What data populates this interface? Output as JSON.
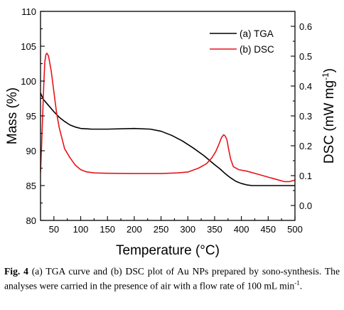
{
  "chart_data": {
    "type": "line",
    "xlabel": "Temperature (°C)",
    "ylabel_left": "Mass (%)",
    "ylabel_right": "DSC (mW mg⁻¹)",
    "xlim": [
      25,
      500
    ],
    "ylim_left": [
      80,
      110
    ],
    "ylim_right": [
      -0.05,
      0.65
    ],
    "x_ticks": [
      "50",
      "100",
      "150",
      "200",
      "250",
      "300",
      "350",
      "400",
      "450",
      "500"
    ],
    "y_left_ticks": [
      "80",
      "85",
      "90",
      "95",
      "100",
      "105",
      "110"
    ],
    "y_right_ticks": [
      "0.0",
      "0.1",
      "0.2",
      "0.3",
      "0.4",
      "0.5",
      "0.6"
    ],
    "grid": false,
    "legend_position": "top-right",
    "series": [
      {
        "name": "(a) TGA",
        "axis": "left",
        "color": "#000000",
        "points": [
          [
            25,
            98.3
          ],
          [
            30,
            97.4
          ],
          [
            40,
            96.5
          ],
          [
            50,
            95.6
          ],
          [
            60,
            94.8
          ],
          [
            70,
            94.2
          ],
          [
            80,
            93.7
          ],
          [
            90,
            93.4
          ],
          [
            100,
            93.2
          ],
          [
            120,
            93.1
          ],
          [
            150,
            93.1
          ],
          [
            200,
            93.2
          ],
          [
            230,
            93.1
          ],
          [
            250,
            92.8
          ],
          [
            270,
            92.2
          ],
          [
            290,
            91.4
          ],
          [
            310,
            90.4
          ],
          [
            330,
            89.3
          ],
          [
            350,
            88.0
          ],
          [
            360,
            87.4
          ],
          [
            370,
            86.7
          ],
          [
            380,
            86.1
          ],
          [
            390,
            85.6
          ],
          [
            400,
            85.3
          ],
          [
            410,
            85.1
          ],
          [
            420,
            85.0
          ],
          [
            450,
            85.0
          ],
          [
            500,
            85.0
          ]
        ]
      },
      {
        "name": "(b) DSC",
        "axis": "right",
        "color": "#e8141b",
        "points": [
          [
            25,
            0.11
          ],
          [
            27,
            0.2
          ],
          [
            29,
            0.3
          ],
          [
            31,
            0.4
          ],
          [
            33,
            0.48
          ],
          [
            35,
            0.505
          ],
          [
            37,
            0.51
          ],
          [
            40,
            0.5
          ],
          [
            45,
            0.45
          ],
          [
            50,
            0.38
          ],
          [
            55,
            0.31
          ],
          [
            60,
            0.26
          ],
          [
            70,
            0.19
          ],
          [
            80,
            0.16
          ],
          [
            90,
            0.135
          ],
          [
            100,
            0.12
          ],
          [
            110,
            0.113
          ],
          [
            125,
            0.109
          ],
          [
            150,
            0.108
          ],
          [
            200,
            0.107
          ],
          [
            250,
            0.107
          ],
          [
            280,
            0.109
          ],
          [
            300,
            0.112
          ],
          [
            320,
            0.125
          ],
          [
            335,
            0.14
          ],
          [
            345,
            0.16
          ],
          [
            352,
            0.18
          ],
          [
            358,
            0.205
          ],
          [
            363,
            0.228
          ],
          [
            367,
            0.237
          ],
          [
            370,
            0.232
          ],
          [
            373,
            0.22
          ],
          [
            376,
            0.19
          ],
          [
            380,
            0.155
          ],
          [
            385,
            0.13
          ],
          [
            395,
            0.12
          ],
          [
            410,
            0.115
          ],
          [
            430,
            0.105
          ],
          [
            450,
            0.095
          ],
          [
            470,
            0.085
          ],
          [
            480,
            0.08
          ],
          [
            490,
            0.08
          ],
          [
            500,
            0.085
          ]
        ]
      }
    ]
  },
  "caption": {
    "label": "Fig. 4",
    "text": " (a) TGA curve and (b) DSC plot of Au NPs prepared by sono-synthesis. The analyses were carried in the presence of air with a flow rate of 100 mL min",
    "superscript": "-1",
    "end": "."
  }
}
